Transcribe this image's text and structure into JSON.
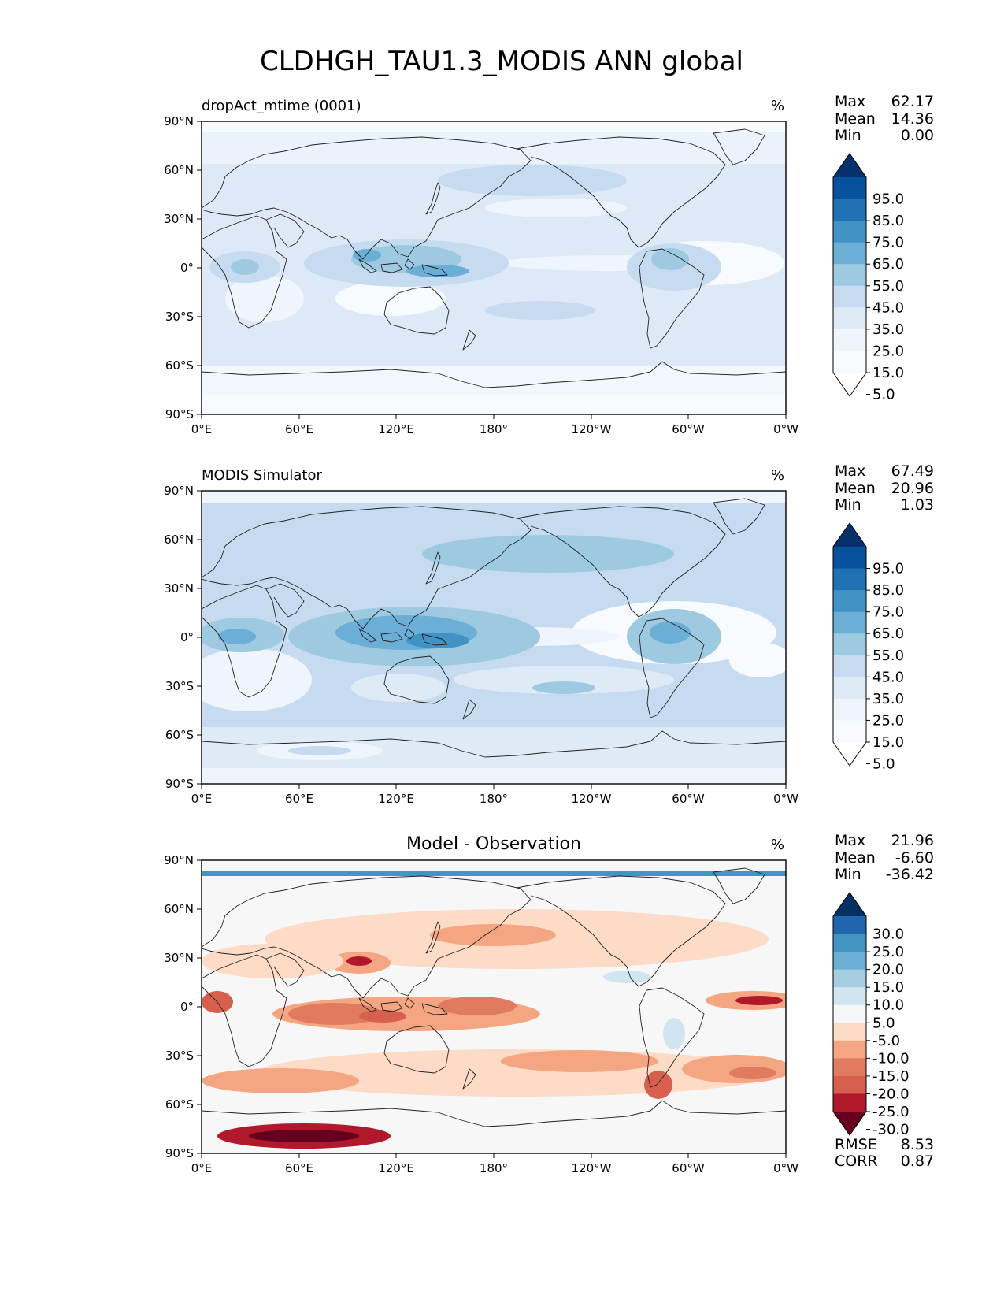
{
  "title": "CLDHGH_TAU1.3_MODIS ANN global",
  "lat_ticks": [
    "90°N",
    "60°N",
    "30°N",
    "0°",
    "30°S",
    "60°S",
    "90°S"
  ],
  "lon_ticks": [
    "0°E",
    "60°E",
    "120°E",
    "180°",
    "120°W",
    "60°W",
    "0°W"
  ],
  "panels": [
    {
      "id": "test",
      "left_title": "dropAct_mtime (0001)",
      "center_title": "",
      "units": "%",
      "stats": [
        {
          "label": "Max",
          "value": "62.17"
        },
        {
          "label": "Mean",
          "value": "14.36"
        },
        {
          "label": "Min",
          "value": "0.00"
        }
      ],
      "colorbar_labels": [
        "95.0",
        "85.0",
        "75.0",
        "65.0",
        "55.0",
        "45.0",
        "35.0",
        "25.0",
        "15.0",
        "5.0"
      ],
      "colorbar_colors": [
        "#08306b",
        "#08519c",
        "#2171b5",
        "#4292c6",
        "#6baed6",
        "#9ecae1",
        "#c6dbef",
        "#deebf7",
        "#eef5fc",
        "#f7fbff",
        "#ffffff"
      ]
    },
    {
      "id": "reference",
      "left_title": "MODIS Simulator",
      "center_title": "",
      "units": "%",
      "stats": [
        {
          "label": "Max",
          "value": "67.49"
        },
        {
          "label": "Mean",
          "value": "20.96"
        },
        {
          "label": "Min",
          "value": "1.03"
        }
      ],
      "colorbar_labels": [
        "95.0",
        "85.0",
        "75.0",
        "65.0",
        "55.0",
        "45.0",
        "35.0",
        "25.0",
        "15.0",
        "5.0"
      ],
      "colorbar_colors": [
        "#08306b",
        "#08519c",
        "#2171b5",
        "#4292c6",
        "#6baed6",
        "#9ecae1",
        "#c6dbef",
        "#deebf7",
        "#eef5fc",
        "#f7fbff",
        "#ffffff"
      ]
    },
    {
      "id": "difference",
      "left_title": "",
      "center_title": "Model - Observation",
      "units": "%",
      "stats": [
        {
          "label": "Max",
          "value": "21.96"
        },
        {
          "label": "Mean",
          "value": "-6.60"
        },
        {
          "label": "Min",
          "value": "-36.42"
        }
      ],
      "colorbar_labels": [
        "30.0",
        "25.0",
        "20.0",
        "15.0",
        "10.0",
        "5.0",
        "-5.0",
        "-10.0",
        "-15.0",
        "-20.0",
        "-25.0",
        "-30.0"
      ],
      "colorbar_colors": [
        "#053061",
        "#2166ac",
        "#4393c3",
        "#6baed6",
        "#a6cee3",
        "#d1e5f0",
        "#f7f7f7",
        "#fddbc7",
        "#f4a582",
        "#e07b5f",
        "#d6604d",
        "#b2182b",
        "#67001f"
      ],
      "metrics": [
        {
          "label": "RMSE",
          "value": "8.53"
        },
        {
          "label": "CORR",
          "value": "0.87"
        }
      ]
    }
  ]
}
